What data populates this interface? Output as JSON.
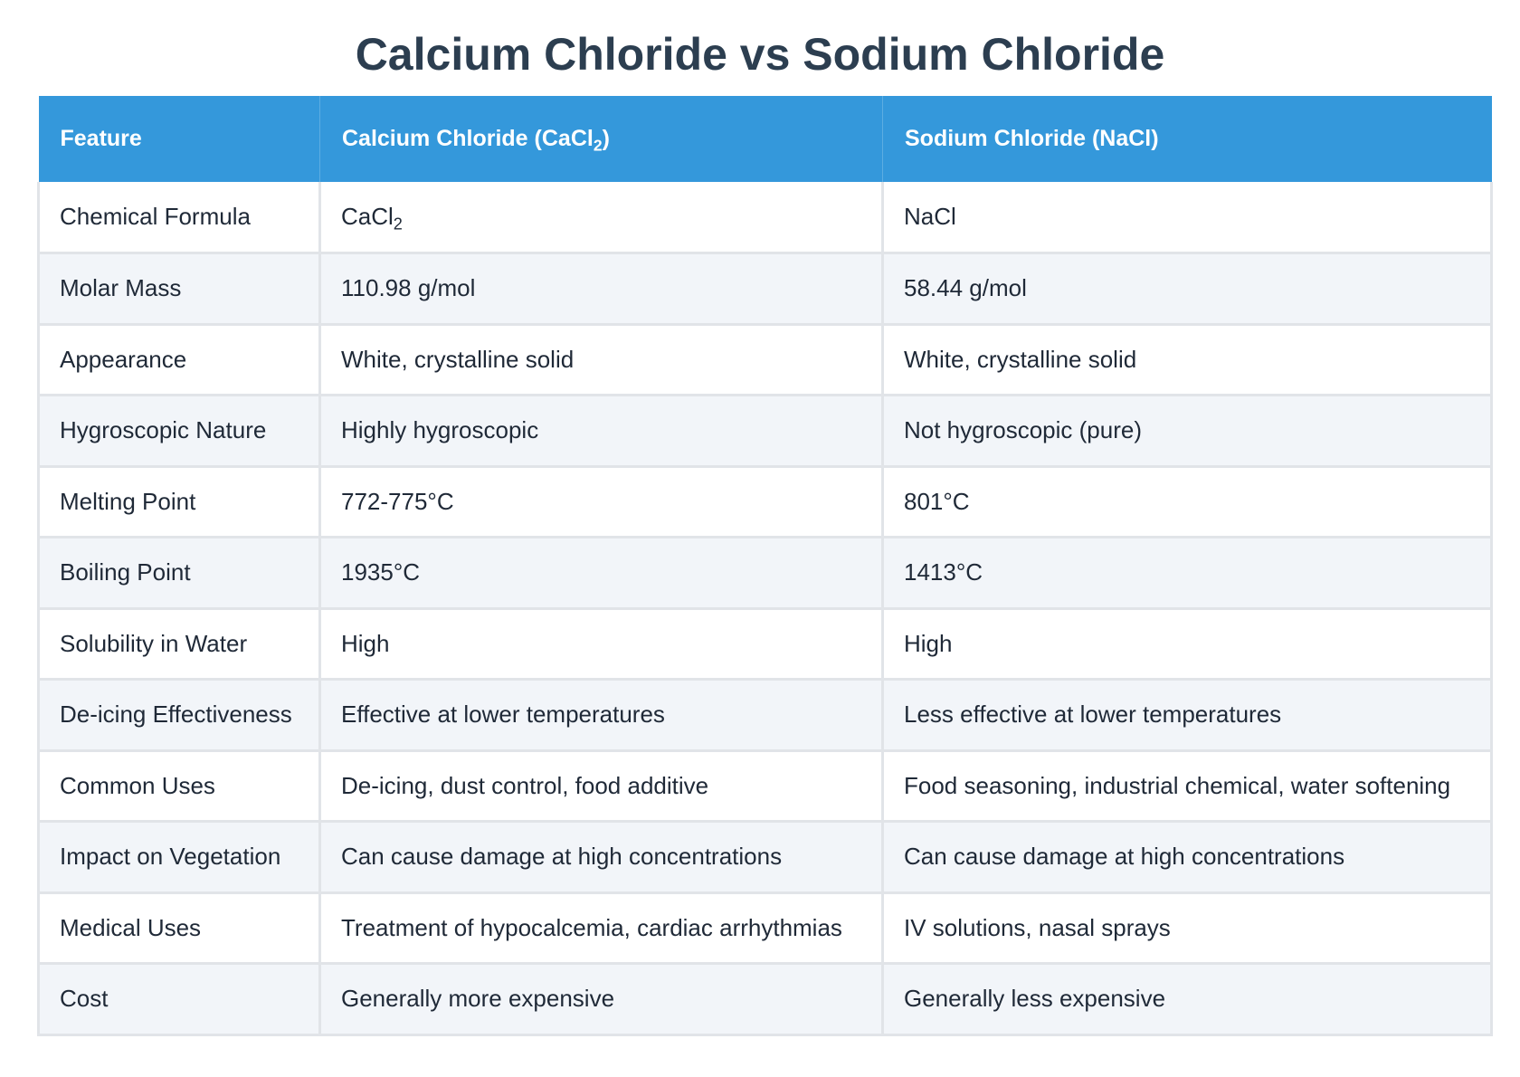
{
  "title": "Calcium Chloride vs Sodium Chloride",
  "table": {
    "headers": {
      "feature": "Feature",
      "calcium_base": "Calcium Chloride (CaCl",
      "calcium_sub": "2",
      "calcium_end": ")",
      "sodium": "Sodium Chloride (NaCl)"
    },
    "formula_row": {
      "feature": "Chemical Formula",
      "calcium_base": "CaCl",
      "calcium_sub": "2",
      "sodium": "NaCl"
    },
    "rows": [
      {
        "feature": "Molar Mass",
        "calcium": "110.98 g/mol",
        "sodium": "58.44 g/mol"
      },
      {
        "feature": "Appearance",
        "calcium": "White, crystalline solid",
        "sodium": "White, crystalline solid"
      },
      {
        "feature": "Hygroscopic Nature",
        "calcium": "Highly hygroscopic",
        "sodium": "Not hygroscopic (pure)"
      },
      {
        "feature": "Melting Point",
        "calcium": "772-775°C",
        "sodium": "801°C"
      },
      {
        "feature": "Boiling Point",
        "calcium": "1935°C",
        "sodium": "1413°C"
      },
      {
        "feature": "Solubility in Water",
        "calcium": "High",
        "sodium": "High"
      },
      {
        "feature": "De-icing Effectiveness",
        "calcium": "Effective at lower temperatures",
        "sodium": "Less effective at lower temperatures"
      },
      {
        "feature": "Common Uses",
        "calcium": "De-icing, dust control, food additive",
        "sodium": "Food seasoning, industrial chemical, water softening"
      },
      {
        "feature": "Impact on Vegetation",
        "calcium": "Can cause damage at high concentrations",
        "sodium": "Can cause damage at high concentrations"
      },
      {
        "feature": "Medical Uses",
        "calcium": "Treatment of hypocalcemia, cardiac arrhythmias",
        "sodium": "IV solutions, nasal sprays"
      },
      {
        "feature": "Cost",
        "calcium": "Generally more expensive",
        "sodium": "Generally less expensive"
      }
    ]
  },
  "colors": {
    "header_bg": "#3498db",
    "title": "#2c3e50",
    "row_alt": "#f2f5f9"
  }
}
